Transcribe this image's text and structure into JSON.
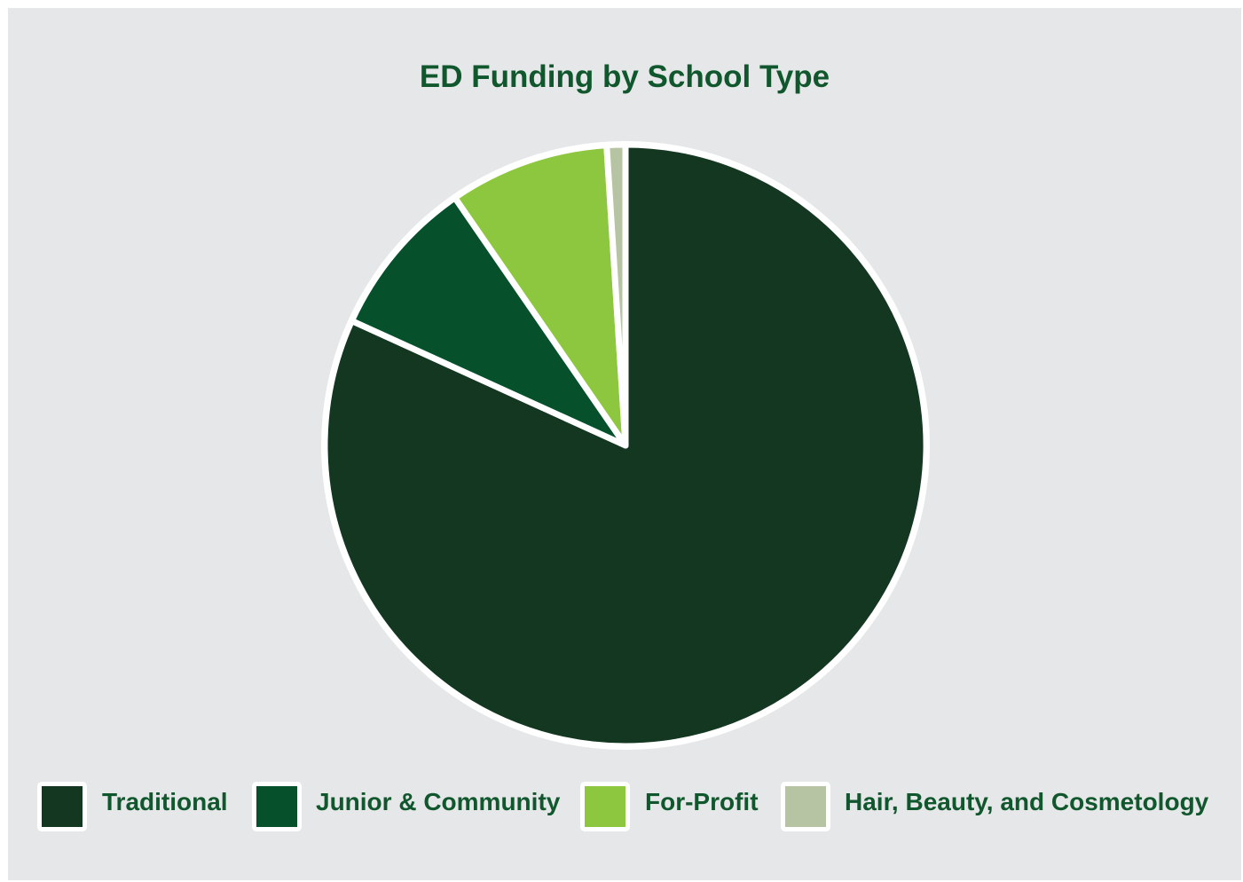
{
  "chart_data": {
    "type": "pie",
    "title": "ED Funding by School Type",
    "categories": [
      "Traditional",
      "Junior & Community",
      "For-Profit",
      "Hair, Beauty, and Cosmetology"
    ],
    "values": [
      81.8,
      8.6,
      8.6,
      1.0
    ],
    "unit": "percent",
    "start_angle": "12 o'clock",
    "direction": "clockwise",
    "legend_position": "bottom",
    "colors": [
      "#133720",
      "#06512c",
      "#8dc63f",
      "#b6c4a3"
    ],
    "slice_border_color": "#ffffff"
  }
}
